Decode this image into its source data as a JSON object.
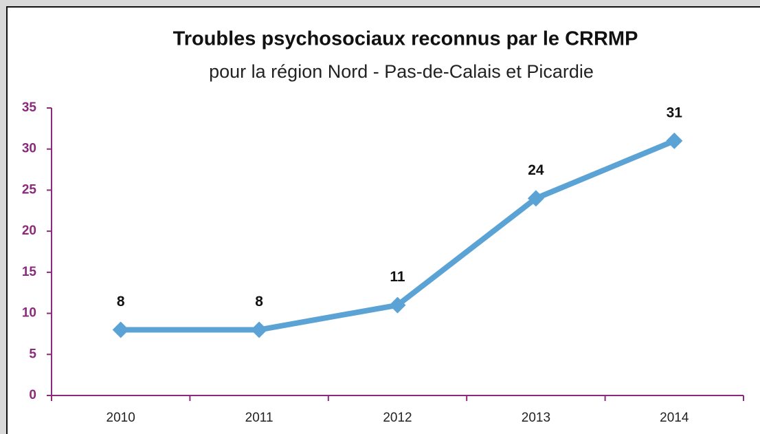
{
  "chart_data": {
    "type": "line",
    "title": "Troubles psychosociaux reconnus par le CRRMP",
    "subtitle": "pour la région Nord - Pas-de-Calais et Picardie",
    "categories": [
      "2010",
      "2011",
      "2012",
      "2013",
      "2014"
    ],
    "series": [
      {
        "name": "CRRMP",
        "color": "#5ba3d4",
        "values": [
          8,
          8,
          11,
          24,
          31
        ]
      }
    ],
    "ylim": [
      0,
      35
    ],
    "yticks": [
      0,
      5,
      10,
      15,
      20,
      25,
      30,
      35
    ],
    "axis_color": "#8b2a7a",
    "grid": false
  }
}
